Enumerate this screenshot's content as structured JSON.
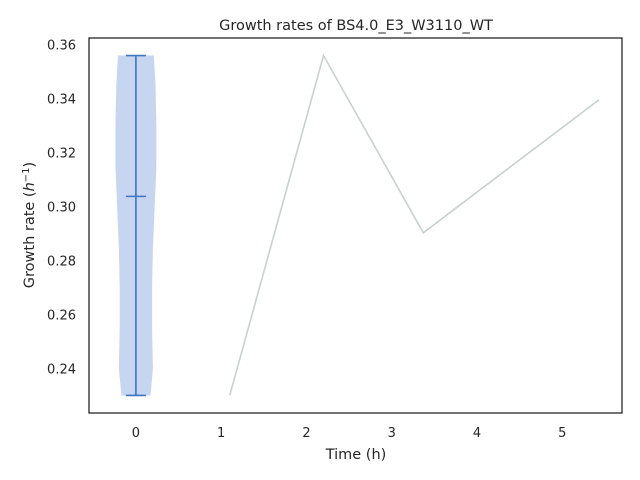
{
  "chart_data": {
    "type": "line",
    "title": "Growth rates of BS4.0_E3_W3110_WT",
    "xlabel": "Time (h)",
    "ylabel_main": "Growth rate (",
    "ylabel_var": "h",
    "ylabel_sup": "−1",
    "ylabel_close": ")",
    "xlim": [
      -0.55,
      5.7
    ],
    "ylim": [
      0.2235,
      0.3625
    ],
    "xticks": [
      0,
      1,
      2,
      3,
      4,
      5
    ],
    "xtick_labels": [
      "0",
      "1",
      "2",
      "3",
      "4",
      "5"
    ],
    "yticks": [
      0.24,
      0.26,
      0.28,
      0.3,
      0.32,
      0.34,
      0.36
    ],
    "ytick_labels": [
      "0.24",
      "0.26",
      "0.28",
      "0.30",
      "0.32",
      "0.34",
      "0.36"
    ],
    "grid": false,
    "series": [
      {
        "x": [
          1.1,
          2.2,
          3.37,
          5.43
        ],
        "values": [
          0.23,
          0.356,
          0.2903,
          0.3396
        ],
        "color": "#c8d0d0"
      }
    ],
    "violin": {
      "position": 0,
      "min": 0.23,
      "max": 0.356,
      "mean": 0.3038,
      "fill_color": "#c6d5f0",
      "line_color": "#3f73c4",
      "profile": [
        [
          0.23,
          0.17
        ],
        [
          0.24,
          0.2
        ],
        [
          0.255,
          0.19
        ],
        [
          0.27,
          0.19
        ],
        [
          0.285,
          0.2
        ],
        [
          0.3,
          0.22
        ],
        [
          0.315,
          0.24
        ],
        [
          0.33,
          0.24
        ],
        [
          0.345,
          0.23
        ],
        [
          0.356,
          0.21
        ]
      ]
    }
  }
}
